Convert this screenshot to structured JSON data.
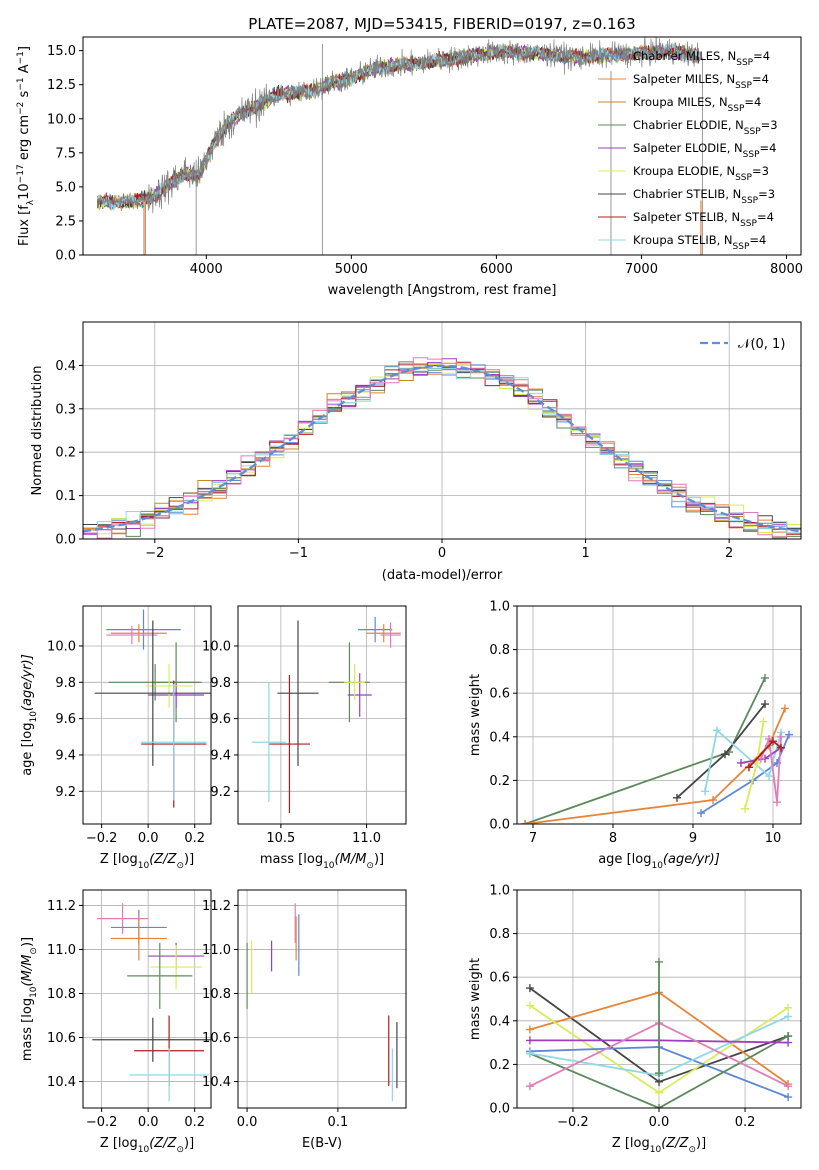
{
  "chart_data": [
    {
      "id": "spectrum",
      "type": "line",
      "title": "PLATE=2087, MJD=53415, FIBERID=0197, z=0.163",
      "xlabel": "wavelength [Angstrom, rest frame]",
      "ylabel_parts": [
        "Flux [f",
        "λ",
        "10",
        "−17",
        " erg cm",
        "−2",
        " s",
        "−1",
        " A",
        "−1",
        "]"
      ],
      "xlim": [
        3150,
        8100
      ],
      "ylim": [
        0,
        16
      ],
      "xticks": [
        4000,
        5000,
        6000,
        7000,
        8000
      ],
      "yticks": [
        0.0,
        2.5,
        5.0,
        7.5,
        10.0,
        12.5,
        15.0
      ],
      "ytick_labels": [
        "0.0",
        "2.5",
        "5.0",
        "7.5",
        "10.0",
        "12.5",
        "15.0"
      ],
      "data_color": "#808080",
      "continuum": {
        "x": [
          3250,
          3500,
          3650,
          3850,
          3950,
          4050,
          4150,
          4350,
          4500,
          4700,
          4860,
          5000,
          5200,
          5400,
          5700,
          6000,
          6300,
          6563,
          6800,
          7000,
          7200,
          7400
        ],
        "y": [
          3.9,
          3.9,
          4.4,
          6.0,
          5.8,
          8.2,
          9.7,
          11.0,
          11.8,
          12.0,
          12.6,
          13.0,
          13.8,
          14.0,
          14.4,
          14.9,
          14.8,
          14.5,
          14.7,
          14.8,
          15.0,
          14.6
        ]
      },
      "legend": [
        {
          "label": "Chabrier MILES, N",
          "sub": "SSP",
          "suffix": "=4",
          "color": "#5f87d6"
        },
        {
          "label": "Salpeter MILES, N",
          "sub": "SSP",
          "suffix": "=4",
          "color": "#e8843a"
        },
        {
          "label": "Kroupa MILES, N",
          "sub": "SSP",
          "suffix": "=4",
          "color": "#c4892a"
        },
        {
          "label": "Chabrier ELODIE, N",
          "sub": "SSP",
          "suffix": "=3",
          "color": "#5c8a5c"
        },
        {
          "label": "Salpeter ELODIE, N",
          "sub": "SSP",
          "suffix": "=4",
          "color": "#9e3fbf"
        },
        {
          "label": "Kroupa ELODIE, N",
          "sub": "SSP",
          "suffix": "=3",
          "color": "#d8ec5a"
        },
        {
          "label": "Chabrier STELIB, N",
          "sub": "SSP",
          "suffix": "=3",
          "color": "#454545"
        },
        {
          "label": "Salpeter STELIB, N",
          "sub": "SSP",
          "suffix": "=4",
          "color": "#b01c1c"
        },
        {
          "label": "Kroupa STELIB, N",
          "sub": "SSP",
          "suffix": "=4",
          "color": "#8fd8e6"
        }
      ]
    },
    {
      "id": "residuals",
      "type": "line",
      "xlabel": "(data-model)/error",
      "ylabel": "Normed distribution",
      "xlim": [
        -2.5,
        2.5
      ],
      "ylim": [
        0,
        0.5
      ],
      "xticks": [
        -2,
        -1,
        0,
        1,
        2
      ],
      "xtick_labels": [
        "−2",
        "−1",
        "0",
        "1",
        "2"
      ],
      "yticks": [
        0.0,
        0.1,
        0.2,
        0.3,
        0.4
      ],
      "ytick_labels": [
        "0.0",
        "0.1",
        "0.2",
        "0.3",
        "0.4"
      ],
      "grid": true,
      "legend": [
        {
          "label": "𝒩(0, 1)",
          "color": "#5b8fd9",
          "style": "dashed"
        }
      ],
      "bin_width": 0.1,
      "series_colors": [
        "#5f87d6",
        "#e8843a",
        "#c4892a",
        "#5c8a5c",
        "#9e3fbf",
        "#d8ec5a",
        "#454545",
        "#b01c1c",
        "#8fd8e6",
        "#e07cba"
      ]
    },
    {
      "id": "age_vs_Z",
      "type": "scatter",
      "xlabel_parts": [
        "Z [log",
        "10",
        "(Z/Z",
        "⊙",
        ")]"
      ],
      "ylabel_parts": [
        "age  [log",
        "10",
        "(age/yr)]"
      ],
      "xlim": [
        -0.28,
        0.27
      ],
      "ylim": [
        9.02,
        10.22
      ],
      "xticks": [
        -0.2,
        0.0,
        0.2
      ],
      "xtick_labels": [
        "−0.2",
        "0.0",
        "0.2"
      ],
      "yticks": [
        9.2,
        9.4,
        9.6,
        9.8,
        10.0
      ],
      "ytick_labels": [
        "9.2",
        "9.4",
        "9.6",
        "9.8",
        "10.0"
      ],
      "grid": true,
      "points": [
        {
          "x": -0.02,
          "y": 10.09,
          "xerr": 0.16,
          "yerr": 0.11,
          "color": "#5f87d6"
        },
        {
          "x": -0.04,
          "y": 10.07,
          "xerr": 0.12,
          "yerr": 0.05,
          "color": "#e8843a"
        },
        {
          "x": -0.07,
          "y": 10.06,
          "xerr": 0.11,
          "yerr": 0.05,
          "color": "#e07cba"
        },
        {
          "x": 0.12,
          "y": 9.8,
          "xerr": 0.1,
          "yerr": 0.22,
          "color": "#5c8a5c"
        },
        {
          "x": 0.03,
          "y": 9.8,
          "xerr": 0.2,
          "yerr": 0.1,
          "color": "#5c8a5c"
        },
        {
          "x": 0.12,
          "y": 9.73,
          "xerr": 0.12,
          "yerr": 0.07,
          "color": "#9e3fbf"
        },
        {
          "x": 0.09,
          "y": 9.78,
          "xerr": 0.1,
          "yerr": 0.12,
          "color": "#d8ec5a"
        },
        {
          "x": 0.02,
          "y": 9.74,
          "xerr": 0.25,
          "yerr": 0.4,
          "color": "#454545"
        },
        {
          "x": 0.11,
          "y": 9.46,
          "xerr": 0.14,
          "yerr": 0.35,
          "color": "#b01c1c"
        },
        {
          "x": 0.11,
          "y": 9.47,
          "xerr": 0.14,
          "yerr": 0.32,
          "color": "#8fd8e6"
        }
      ]
    },
    {
      "id": "age_vs_mass",
      "type": "scatter",
      "xlabel_parts": [
        "mass [log",
        "10",
        "(M/M",
        "⊙",
        ")]"
      ],
      "xlim": [
        10.25,
        11.23
      ],
      "ylim": [
        9.02,
        10.22
      ],
      "xticks": [
        10.5,
        11.0
      ],
      "xtick_labels": [
        "10.5",
        "11.0"
      ],
      "yticks": [
        9.2,
        9.4,
        9.6,
        9.8,
        10.0
      ],
      "ytick_labels": [
        "9.2",
        "9.4",
        "9.6",
        "9.8",
        "10.0"
      ],
      "grid": true,
      "points": [
        {
          "x": 11.05,
          "y": 10.09,
          "xerr": 0.1,
          "yerr": 0.07,
          "color": "#5f87d6"
        },
        {
          "x": 11.1,
          "y": 10.07,
          "xerr": 0.1,
          "yerr": 0.05,
          "color": "#e8843a"
        },
        {
          "x": 11.14,
          "y": 10.06,
          "xerr": 0.06,
          "yerr": 0.07,
          "color": "#e07cba"
        },
        {
          "x": 10.9,
          "y": 9.8,
          "xerr": 0.12,
          "yerr": 0.22,
          "color": "#5c8a5c"
        },
        {
          "x": 10.96,
          "y": 9.73,
          "xerr": 0.07,
          "yerr": 0.12,
          "color": "#9e3fbf"
        },
        {
          "x": 10.93,
          "y": 9.8,
          "xerr": 0.06,
          "yerr": 0.1,
          "color": "#d8ec5a"
        },
        {
          "x": 10.6,
          "y": 9.74,
          "xerr": 0.12,
          "yerr": 0.4,
          "color": "#454545"
        },
        {
          "x": 10.55,
          "y": 9.46,
          "xerr": 0.12,
          "yerr": 0.38,
          "color": "#b01c1c"
        },
        {
          "x": 10.43,
          "y": 9.47,
          "xerr": 0.1,
          "yerr": 0.33,
          "color": "#8fd8e6"
        }
      ]
    },
    {
      "id": "massweight_vs_age",
      "type": "line",
      "xlabel_parts": [
        "age  [log",
        "10",
        "(age/yr)]"
      ],
      "ylabel": "mass weight",
      "xlim": [
        6.8,
        10.35
      ],
      "ylim": [
        0,
        1
      ],
      "xticks": [
        7,
        8,
        9,
        10
      ],
      "yticks": [
        0.0,
        0.2,
        0.4,
        0.6,
        0.8,
        1.0
      ],
      "ytick_labels": [
        "0.0",
        "0.2",
        "0.4",
        "0.6",
        "0.8",
        "1.0"
      ],
      "grid": true,
      "series": [
        {
          "color": "#5c8a5c",
          "x": [
            6.9,
            9.45,
            9.9
          ],
          "y": [
            0.0,
            0.33,
            0.67
          ]
        },
        {
          "color": "#e8843a",
          "x": [
            6.9,
            9.25,
            9.95,
            10.15
          ],
          "y": [
            0.0,
            0.11,
            0.36,
            0.53
          ]
        },
        {
          "color": "#454545",
          "x": [
            8.8,
            9.4,
            9.9
          ],
          "y": [
            0.12,
            0.32,
            0.55
          ]
        },
        {
          "color": "#5f87d6",
          "x": [
            9.1,
            9.75,
            10.05,
            10.2
          ],
          "y": [
            0.05,
            0.2,
            0.28,
            0.41
          ]
        },
        {
          "color": "#8fd8e6",
          "x": [
            9.15,
            9.3,
            9.95,
            10.1
          ],
          "y": [
            0.15,
            0.43,
            0.22,
            0.42
          ]
        },
        {
          "color": "#9e3fbf",
          "x": [
            9.6,
            9.9,
            10.1
          ],
          "y": [
            0.28,
            0.3,
            0.35
          ]
        },
        {
          "color": "#d8ec5a",
          "x": [
            9.65,
            9.8,
            9.88
          ],
          "y": [
            0.07,
            0.28,
            0.47
          ]
        },
        {
          "color": "#e07cba",
          "x": [
            9.85,
            9.95,
            10.05,
            10.1
          ],
          "y": [
            0.3,
            0.39,
            0.1,
            0.4
          ]
        },
        {
          "color": "#b01c1c",
          "x": [
            9.7,
            10.0,
            10.1
          ],
          "y": [
            0.26,
            0.38,
            0.35
          ]
        }
      ]
    },
    {
      "id": "mass_vs_Z",
      "type": "scatter",
      "xlabel_parts": [
        "Z [log",
        "10",
        "(Z/Z",
        "⊙",
        ")]"
      ],
      "ylabel_parts": [
        "mass [log",
        "10",
        "(M/M",
        "⊙",
        ")]"
      ],
      "xlim": [
        -0.28,
        0.27
      ],
      "ylim": [
        10.28,
        11.27
      ],
      "xticks": [
        -0.2,
        0.0,
        0.2
      ],
      "xtick_labels": [
        "−0.2",
        "0.0",
        "0.2"
      ],
      "yticks": [
        10.4,
        10.6,
        10.8,
        11.0,
        11.2
      ],
      "ytick_labels": [
        "10.4",
        "10.6",
        "10.8",
        "11.0",
        "11.2"
      ],
      "grid": true,
      "points": [
        {
          "x": -0.11,
          "y": 11.14,
          "xerr": 0.11,
          "yerr": 0.07,
          "color": "#e07cba"
        },
        {
          "x": -0.04,
          "y": 11.1,
          "xerr": 0.12,
          "yerr": 0.08,
          "color": "#5f87d6"
        },
        {
          "x": -0.04,
          "y": 11.05,
          "xerr": 0.12,
          "yerr": 0.1,
          "color": "#e8843a"
        },
        {
          "x": 0.12,
          "y": 10.97,
          "xerr": 0.12,
          "yerr": 0.06,
          "color": "#9e3fbf"
        },
        {
          "x": 0.12,
          "y": 10.92,
          "xerr": 0.11,
          "yerr": 0.1,
          "color": "#d8ec5a"
        },
        {
          "x": 0.05,
          "y": 10.88,
          "xerr": 0.14,
          "yerr": 0.15,
          "color": "#5c8a5c"
        },
        {
          "x": 0.02,
          "y": 10.59,
          "xerr": 0.26,
          "yerr": 0.1,
          "color": "#454545"
        },
        {
          "x": 0.09,
          "y": 10.54,
          "xerr": 0.15,
          "yerr": 0.16,
          "color": "#b01c1c"
        },
        {
          "x": 0.09,
          "y": 10.43,
          "xerr": 0.17,
          "yerr": 0.12,
          "color": "#8fd8e6"
        }
      ]
    },
    {
      "id": "mass_vs_EBV",
      "type": "scatter",
      "xlabel": "E(B-V)",
      "xlim": [
        -0.01,
        0.175
      ],
      "ylim": [
        10.28,
        11.27
      ],
      "xticks": [
        0.0,
        0.1
      ],
      "xtick_labels": [
        "0.0",
        "0.1"
      ],
      "yticks": [
        10.4,
        10.6,
        10.8,
        11.0,
        11.2
      ],
      "ytick_labels": [
        "10.4",
        "10.6",
        "10.8",
        "11.0",
        "11.2"
      ],
      "grid": true,
      "points": [
        {
          "x": 0.0,
          "y": 10.88,
          "xerr": 0,
          "yerr": 0.15,
          "color": "#5c8a5c"
        },
        {
          "x": 0.005,
          "y": 10.92,
          "xerr": 0,
          "yerr": 0.12,
          "color": "#d8ec5a"
        },
        {
          "x": 0.027,
          "y": 10.97,
          "xerr": 0,
          "yerr": 0.07,
          "color": "#9e3fbf"
        },
        {
          "x": 0.053,
          "y": 11.12,
          "xerr": 0,
          "yerr": 0.09,
          "color": "#e07cba"
        },
        {
          "x": 0.054,
          "y": 11.05,
          "xerr": 0,
          "yerr": 0.1,
          "color": "#e8843a"
        },
        {
          "x": 0.057,
          "y": 11.02,
          "xerr": 0,
          "yerr": 0.14,
          "color": "#5f87d6"
        },
        {
          "x": 0.156,
          "y": 10.54,
          "xerr": 0,
          "yerr": 0.16,
          "color": "#b01c1c"
        },
        {
          "x": 0.16,
          "y": 10.43,
          "xerr": 0,
          "yerr": 0.12,
          "color": "#8fd8e6"
        },
        {
          "x": 0.165,
          "y": 10.52,
          "xerr": 0,
          "yerr": 0.15,
          "color": "#454545"
        }
      ]
    },
    {
      "id": "massweight_vs_Z",
      "type": "line",
      "xlabel_parts": [
        "Z [log",
        "10",
        "(Z/Z",
        "⊙",
        ")]"
      ],
      "ylabel": "mass weight",
      "xlim": [
        -0.33,
        0.33
      ],
      "ylim": [
        0,
        1
      ],
      "xticks": [
        -0.2,
        0.0,
        0.2
      ],
      "xtick_labels": [
        "−0.2",
        "0.0",
        "0.2"
      ],
      "yticks": [
        0.0,
        0.2,
        0.4,
        0.6,
        0.8,
        1.0
      ],
      "ytick_labels": [
        "0.0",
        "0.2",
        "0.4",
        "0.6",
        "0.8",
        "1.0"
      ],
      "grid": true,
      "series": [
        {
          "color": "#454545",
          "x": [
            -0.3,
            0.0,
            0.3
          ],
          "y": [
            0.55,
            0.12,
            0.33
          ]
        },
        {
          "color": "#e8843a",
          "x": [
            -0.3,
            0.0,
            0.3
          ],
          "y": [
            0.36,
            0.53,
            0.11
          ]
        },
        {
          "color": "#d8ec5a",
          "x": [
            -0.3,
            0.0,
            0.3
          ],
          "y": [
            0.47,
            0.07,
            0.46
          ]
        },
        {
          "color": "#5f87d6",
          "x": [
            -0.3,
            0.0,
            0.3
          ],
          "y": [
            0.26,
            0.28,
            0.05
          ]
        },
        {
          "color": "#5c8a5c",
          "x": [
            -0.3,
            0.0,
            0.3
          ],
          "y": [
            0.25,
            0.0,
            0.33
          ]
        },
        {
          "color": "#8fd8e6",
          "x": [
            -0.3,
            0.0,
            0.3
          ],
          "y": [
            0.25,
            0.15,
            0.42
          ]
        },
        {
          "color": "#9e3fbf",
          "x": [
            -0.3,
            0.0,
            0.3
          ],
          "y": [
            0.31,
            0.31,
            0.3
          ]
        },
        {
          "color": "#e07cba",
          "x": [
            -0.3,
            0.0,
            0.3
          ],
          "y": [
            0.1,
            0.39,
            0.1
          ]
        },
        {
          "color": "#5c8a5c",
          "x": [
            0.0,
            0.0
          ],
          "y": [
            0.16,
            0.67
          ]
        }
      ]
    }
  ]
}
